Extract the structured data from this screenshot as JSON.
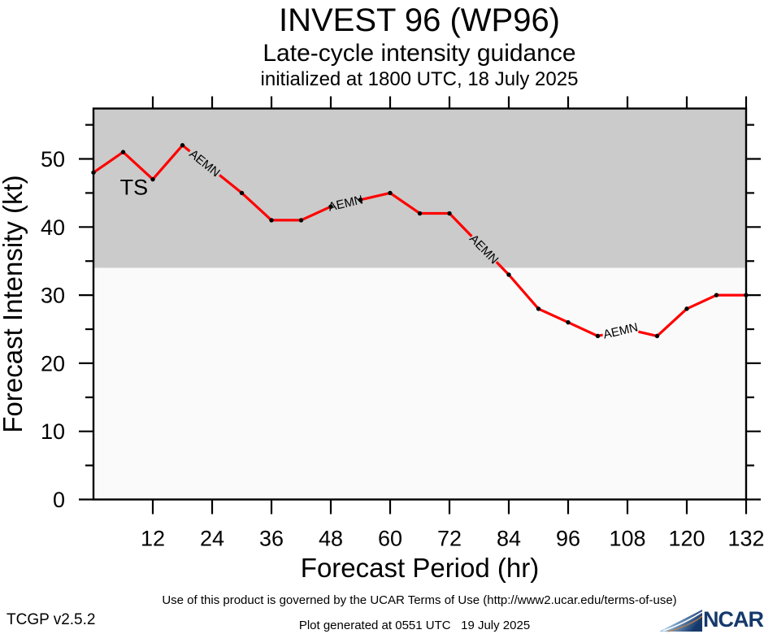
{
  "header": {
    "title": "INVEST 96 (WP96)",
    "subtitle": "Late-cycle intensity guidance",
    "init_line": "initialized at 1800 UTC, 18 July 2025"
  },
  "chart_data": {
    "type": "line",
    "title": "INVEST 96 (WP96)",
    "subtitle": "Late-cycle intensity guidance",
    "initialized": "initialized at 1800 UTC, 18 July 2025",
    "xlabel": "Forecast Period (hr)",
    "ylabel": "Forecast Intensity (kt)",
    "xlim": [
      0,
      132
    ],
    "ylim": [
      0,
      57.4
    ],
    "x_ticks": [
      12,
      24,
      36,
      48,
      60,
      72,
      84,
      96,
      108,
      120,
      132
    ],
    "y_ticks": [
      0,
      10,
      20,
      30,
      40,
      50
    ],
    "y_minor_ticks": [
      5,
      15,
      25,
      35,
      45,
      55
    ],
    "grid": "off",
    "legend": "inline-line-labels",
    "ts_threshold_kt": 34,
    "band_label": {
      "text": "TS",
      "hour": 8.2,
      "kt": 45.8,
      "color": "#ffffff"
    },
    "series": [
      {
        "name": "AEMN",
        "color": "#ff0000",
        "x": [
          0,
          6,
          12,
          18,
          24,
          30,
          36,
          42,
          48,
          54,
          60,
          66,
          72,
          78,
          84,
          90,
          96,
          102,
          108,
          114,
          120,
          126,
          132
        ],
        "values": [
          48,
          51,
          47,
          52,
          48.5,
          45,
          41,
          41,
          43,
          44,
          45,
          42,
          42,
          37.5,
          33,
          28,
          26,
          24,
          25,
          24,
          28,
          30,
          30
        ],
        "marker": "dot",
        "hidden_marker_hours": [
          24,
          78,
          108
        ],
        "inline_label_hour_ranges": [
          [
            19.5,
            25.5
          ],
          [
            48.3,
            53.7
          ],
          [
            76.5,
            81.5
          ],
          [
            103,
            110.2
          ]
        ]
      }
    ],
    "colors": {
      "ts_band": "#cbcbcb",
      "below_band": "#fafafa",
      "line": "#ff0000",
      "marker": "#000000",
      "frame": "#000000"
    }
  },
  "footer": {
    "terms": "Use of this product is governed by the UCAR Terms of Use (http://www2.ucar.edu/terms-of-use)",
    "version": "TCGP v2.5.2",
    "generated": "Plot generated at 0551 UTC   19 July 2025",
    "logo_text": "NCAR"
  }
}
